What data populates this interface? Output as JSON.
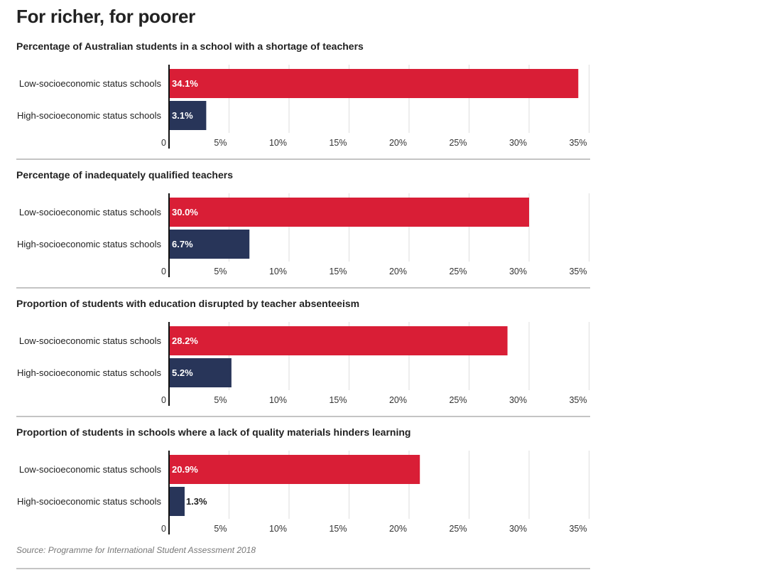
{
  "title": "For richer, for poorer",
  "source": "Source: Programme for International Student Assessment 2018",
  "colors": {
    "low": "#d91e36",
    "high": "#283559"
  },
  "chart_data": [
    {
      "type": "bar",
      "orientation": "horizontal",
      "title": "Percentage of Australian students in a school with a shortage of teachers",
      "categories": [
        "Low-socioeconomic status schools",
        "High-socioeconomic status schools"
      ],
      "values": [
        34.1,
        3.1
      ],
      "value_labels": [
        "34.1%",
        "3.1%"
      ],
      "xlim": [
        0,
        35
      ],
      "xticks": [
        "0",
        "5%",
        "10%",
        "15%",
        "20%",
        "25%",
        "30%",
        "35%"
      ],
      "grid": true
    },
    {
      "type": "bar",
      "orientation": "horizontal",
      "title": "Percentage of inadequately qualified teachers",
      "categories": [
        "Low-socioeconomic status schools",
        "High-socioeconomic status schools"
      ],
      "values": [
        30.0,
        6.7
      ],
      "value_labels": [
        "30.0%",
        "6.7%"
      ],
      "xlim": [
        0,
        35
      ],
      "xticks": [
        "0",
        "5%",
        "10%",
        "15%",
        "20%",
        "25%",
        "30%",
        "35%"
      ],
      "grid": true
    },
    {
      "type": "bar",
      "orientation": "horizontal",
      "title": "Proportion of students with education disrupted by teacher absenteeism",
      "categories": [
        "Low-socioeconomic status schools",
        "High-socioeconomic status schools"
      ],
      "values": [
        28.2,
        5.2
      ],
      "value_labels": [
        "28.2%",
        "5.2%"
      ],
      "xlim": [
        0,
        35
      ],
      "xticks": [
        "0",
        "5%",
        "10%",
        "15%",
        "20%",
        "25%",
        "30%",
        "35%"
      ],
      "grid": true
    },
    {
      "type": "bar",
      "orientation": "horizontal",
      "title": "Proportion of students in schools where a lack of quality materials hinders learning",
      "categories": [
        "Low-socioeconomic status schools",
        "High-socioeconomic status schools"
      ],
      "values": [
        20.9,
        1.3
      ],
      "value_labels": [
        "20.9%",
        "1.3%"
      ],
      "xlim": [
        0,
        35
      ],
      "xticks": [
        "0",
        "5%",
        "10%",
        "15%",
        "20%",
        "25%",
        "30%",
        "35%"
      ],
      "grid": true
    }
  ]
}
